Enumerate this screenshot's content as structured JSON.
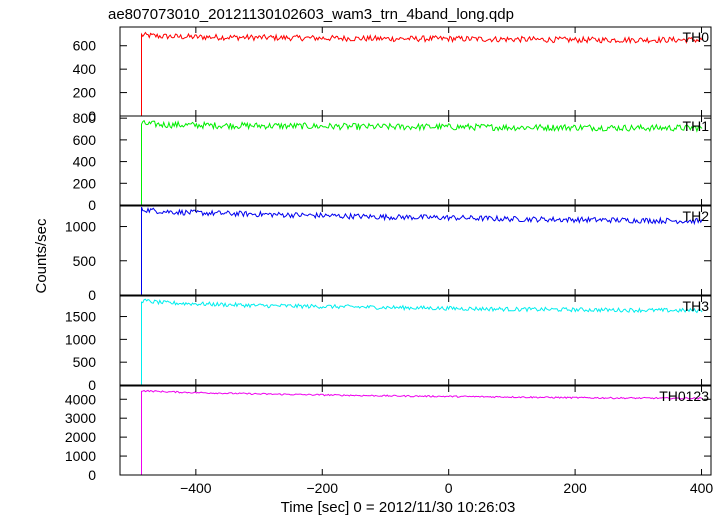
{
  "chart_data": {
    "type": "line",
    "title": "ae807073010_20121130102603_wam3_trn_4band_long.qdp",
    "xlabel": "Time [sec] 0 = 2012/11/30 10:26:03",
    "ylabel": "Counts/sec",
    "xlim": [
      -520,
      415
    ],
    "xticks": [
      -400,
      -200,
      0,
      200,
      400
    ],
    "step_time": -486,
    "grid": false,
    "panels": [
      {
        "name": "TH0",
        "color": "#ff0000",
        "ylim": [
          0,
          760
        ],
        "yticks": [
          0,
          200,
          400,
          600
        ],
        "pre_level": 0,
        "points": [
          [
            -486,
            690
          ],
          [
            -450,
            680
          ],
          [
            -400,
            675
          ],
          [
            -300,
            670
          ],
          [
            -200,
            665
          ],
          [
            -100,
            660
          ],
          [
            0,
            660
          ],
          [
            100,
            655
          ],
          [
            200,
            650
          ],
          [
            300,
            650
          ],
          [
            400,
            650
          ]
        ],
        "noise": 25
      },
      {
        "name": "TH1",
        "color": "#00ee00",
        "ylim": [
          0,
          820
        ],
        "yticks": [
          0,
          200,
          400,
          600,
          800
        ],
        "pre_level": 0,
        "points": [
          [
            -486,
            750
          ],
          [
            -450,
            740
          ],
          [
            -400,
            735
          ],
          [
            -300,
            730
          ],
          [
            -200,
            725
          ],
          [
            -100,
            720
          ],
          [
            0,
            720
          ],
          [
            100,
            715
          ],
          [
            200,
            715
          ],
          [
            300,
            710
          ],
          [
            400,
            710
          ]
        ],
        "noise": 30
      },
      {
        "name": "TH2",
        "color": "#0000ee",
        "ylim": [
          0,
          1300
        ],
        "yticks": [
          0,
          500,
          1000
        ],
        "pre_level": 0,
        "points": [
          [
            -486,
            1250
          ],
          [
            -450,
            1220
          ],
          [
            -400,
            1200
          ],
          [
            -300,
            1180
          ],
          [
            -200,
            1160
          ],
          [
            -100,
            1140
          ],
          [
            0,
            1130
          ],
          [
            100,
            1110
          ],
          [
            200,
            1100
          ],
          [
            300,
            1090
          ],
          [
            400,
            1080
          ]
        ],
        "noise": 40
      },
      {
        "name": "TH3",
        "color": "#00eeee",
        "ylim": [
          0,
          1950
        ],
        "yticks": [
          0,
          500,
          1000,
          1500
        ],
        "pre_level": 0,
        "points": [
          [
            -486,
            1850
          ],
          [
            -450,
            1800
          ],
          [
            -400,
            1780
          ],
          [
            -300,
            1740
          ],
          [
            -200,
            1720
          ],
          [
            -100,
            1700
          ],
          [
            0,
            1680
          ],
          [
            100,
            1660
          ],
          [
            200,
            1650
          ],
          [
            300,
            1640
          ],
          [
            400,
            1630
          ]
        ],
        "noise": 45
      },
      {
        "name": "TH0123",
        "color": "#ee00ee",
        "ylim": [
          0,
          4700
        ],
        "yticks": [
          0,
          1000,
          2000,
          3000,
          4000
        ],
        "pre_level": 0,
        "points": [
          [
            -486,
            4450
          ],
          [
            -450,
            4400
          ],
          [
            -400,
            4350
          ],
          [
            -300,
            4280
          ],
          [
            -200,
            4230
          ],
          [
            -100,
            4180
          ],
          [
            0,
            4150
          ],
          [
            100,
            4120
          ],
          [
            200,
            4080
          ],
          [
            300,
            4060
          ],
          [
            400,
            4050
          ]
        ],
        "noise": 40
      }
    ]
  }
}
